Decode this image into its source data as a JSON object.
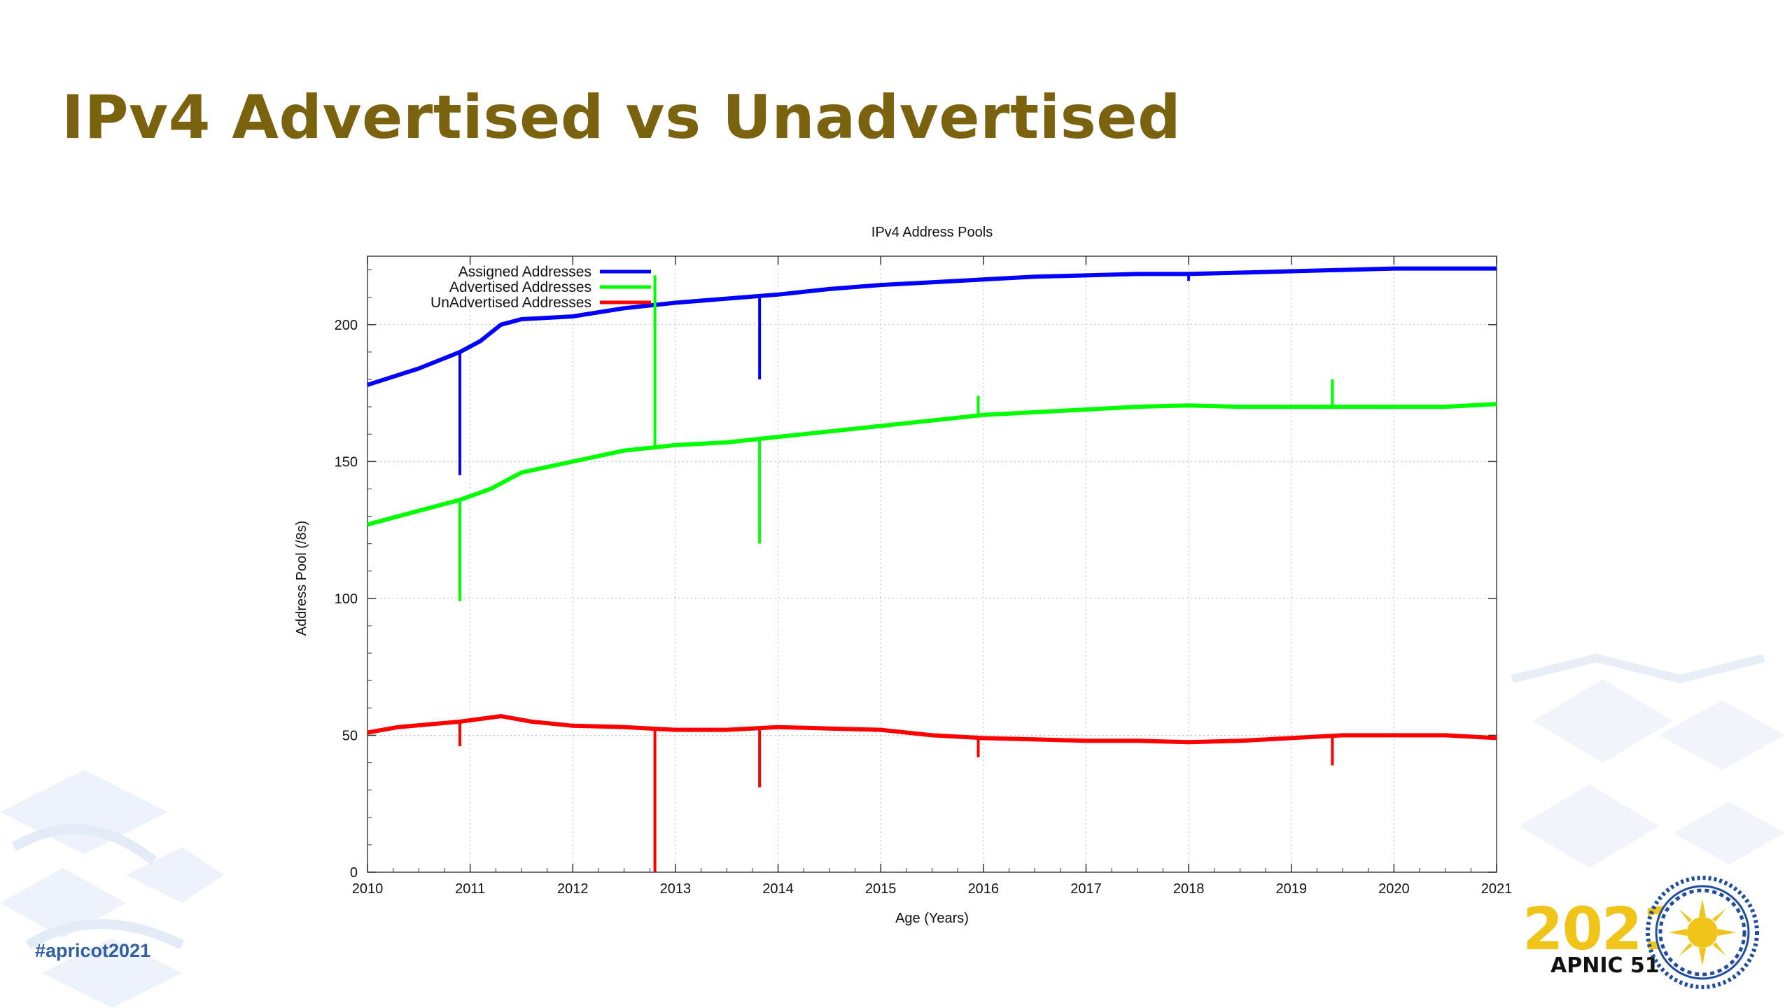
{
  "slide": {
    "title": "IPv4 Advertised vs Unadvertised",
    "hashtag": "#apricot2021",
    "logo_year": "2021",
    "logo_org": "APNIC 51"
  },
  "colors": {
    "title": "#7a620f",
    "assigned": "#0000ff",
    "advertised": "#00ff00",
    "unadvertised": "#ff0000",
    "logo_gold": "#f0c419",
    "logo_blue": "#1f4e9e"
  },
  "chart_data": {
    "type": "line",
    "title": "IPv4 Address Pools",
    "xlabel": "Age (Years)",
    "ylabel": "Address Pool (/8s)",
    "xlim": [
      2010,
      2021
    ],
    "ylim": [
      0,
      225
    ],
    "x_ticks": [
      "2010",
      "2011",
      "2012",
      "2013",
      "2014",
      "2015",
      "2016",
      "2017",
      "2018",
      "2019",
      "2020",
      "2021"
    ],
    "y_ticks": [
      "0",
      "50",
      "100",
      "150",
      "200"
    ],
    "grid": true,
    "legend_position": "top-left",
    "series": [
      {
        "name": "Assigned Addresses",
        "color": "#0000ff",
        "points": [
          [
            2010,
            178
          ],
          [
            2010.5,
            184
          ],
          [
            2010.9,
            190
          ],
          [
            2011.1,
            194
          ],
          [
            2011.3,
            200
          ],
          [
            2011.5,
            202
          ],
          [
            2012,
            203
          ],
          [
            2012.5,
            206
          ],
          [
            2013,
            208
          ],
          [
            2013.5,
            209.5
          ],
          [
            2014,
            211
          ],
          [
            2014.5,
            213
          ],
          [
            2015,
            214.5
          ],
          [
            2015.5,
            215.5
          ],
          [
            2016,
            216.5
          ],
          [
            2016.5,
            217.5
          ],
          [
            2017,
            218
          ],
          [
            2017.5,
            218.5
          ],
          [
            2018,
            218.5
          ],
          [
            2018.5,
            219
          ],
          [
            2019,
            219.5
          ],
          [
            2019.5,
            220
          ],
          [
            2020,
            220.5
          ],
          [
            2021,
            220.5
          ]
        ],
        "spikes": [
          [
            2010.9,
            145
          ],
          [
            2013.82,
            180
          ],
          [
            2018,
            216
          ]
        ]
      },
      {
        "name": "Advertised Addresses",
        "color": "#00ff00",
        "points": [
          [
            2010,
            127
          ],
          [
            2010.5,
            132
          ],
          [
            2010.9,
            136
          ],
          [
            2011.2,
            140
          ],
          [
            2011.5,
            146
          ],
          [
            2012,
            150
          ],
          [
            2012.5,
            154
          ],
          [
            2013,
            156
          ],
          [
            2013.5,
            157
          ],
          [
            2014,
            159
          ],
          [
            2014.5,
            161
          ],
          [
            2015,
            163
          ],
          [
            2015.5,
            165
          ],
          [
            2016,
            167
          ],
          [
            2016.5,
            168
          ],
          [
            2017,
            169
          ],
          [
            2017.5,
            170
          ],
          [
            2018,
            170.5
          ],
          [
            2018.5,
            170
          ],
          [
            2019,
            170
          ],
          [
            2019.5,
            170
          ],
          [
            2020,
            170
          ],
          [
            2020.5,
            170
          ],
          [
            2021,
            171
          ]
        ],
        "spikes": [
          [
            2010.9,
            99
          ],
          [
            2012.8,
            218
          ],
          [
            2013.82,
            120
          ],
          [
            2015.95,
            174
          ],
          [
            2019.4,
            180
          ]
        ]
      },
      {
        "name": "UnAdvertised Addresses",
        "color": "#ff0000",
        "points": [
          [
            2010,
            51
          ],
          [
            2010.3,
            53
          ],
          [
            2010.9,
            55
          ],
          [
            2011.3,
            57
          ],
          [
            2011.6,
            55
          ],
          [
            2012,
            53.5
          ],
          [
            2012.5,
            53
          ],
          [
            2013,
            52
          ],
          [
            2013.5,
            52
          ],
          [
            2014,
            53
          ],
          [
            2014.5,
            52.5
          ],
          [
            2015,
            52
          ],
          [
            2015.5,
            50
          ],
          [
            2016,
            49
          ],
          [
            2016.5,
            48.5
          ],
          [
            2017,
            48
          ],
          [
            2017.5,
            48
          ],
          [
            2018,
            47.5
          ],
          [
            2018.5,
            48
          ],
          [
            2019,
            49
          ],
          [
            2019.5,
            50
          ],
          [
            2020,
            50
          ],
          [
            2020.5,
            50
          ],
          [
            2021,
            49
          ]
        ],
        "spikes": [
          [
            2010.9,
            46
          ],
          [
            2012.8,
            0
          ],
          [
            2013.82,
            31
          ],
          [
            2015.95,
            42
          ],
          [
            2019.4,
            39
          ]
        ]
      }
    ]
  }
}
